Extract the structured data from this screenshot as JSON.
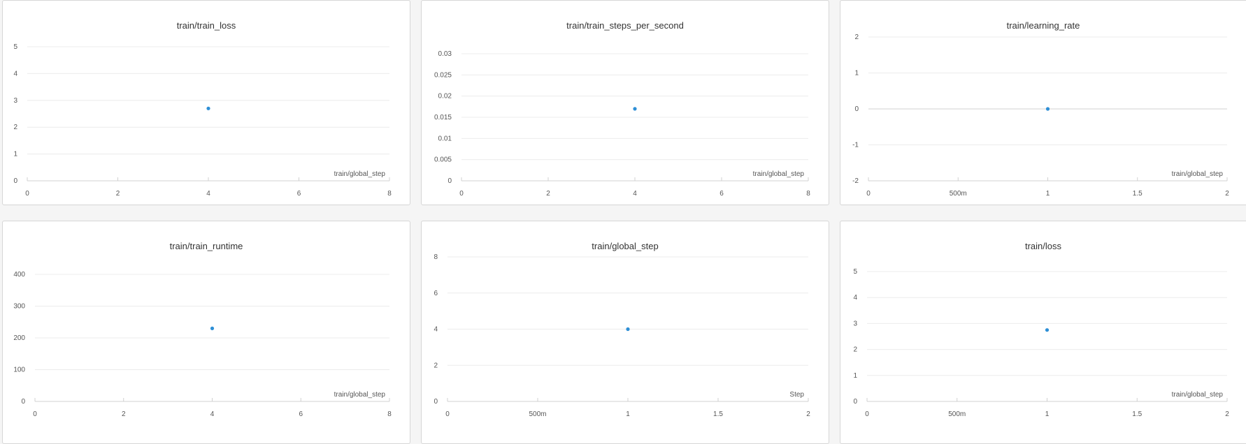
{
  "style": {
    "point_color": "#2e8fd6",
    "grid_color": "#ececec",
    "axis_color": "#d0d0d0",
    "tick_text_color": "#555555"
  },
  "chart_data": [
    {
      "type": "scatter",
      "title": "train/train_loss",
      "xlabel": "train/global_step",
      "ylabel": "",
      "xlim": [
        0,
        8
      ],
      "ylim": [
        0,
        5
      ],
      "x_ticks": [
        "0",
        "2",
        "4",
        "6",
        "8"
      ],
      "y_ticks": [
        "0",
        "1",
        "2",
        "3",
        "4",
        "5"
      ],
      "grid": true,
      "series": [
        {
          "x": [
            4
          ],
          "y": [
            2.7
          ]
        }
      ]
    },
    {
      "type": "scatter",
      "title": "train/train_steps_per_second",
      "xlabel": "train/global_step",
      "ylabel": "",
      "xlim": [
        0,
        8
      ],
      "ylim": [
        0,
        0.03
      ],
      "x_ticks": [
        "0",
        "2",
        "4",
        "6",
        "8"
      ],
      "y_ticks": [
        "0",
        "0.005",
        "0.01",
        "0.015",
        "0.02",
        "0.025",
        "0.03"
      ],
      "grid": true,
      "series": [
        {
          "x": [
            4
          ],
          "y": [
            0.017
          ]
        }
      ]
    },
    {
      "type": "scatter",
      "title": "train/learning_rate",
      "xlabel": "train/global_step",
      "ylabel": "",
      "xlim": [
        0,
        2
      ],
      "ylim": [
        -2,
        2
      ],
      "x_ticks": [
        "0",
        "500m",
        "1",
        "1.5",
        "2"
      ],
      "y_ticks": [
        "-2",
        "-1",
        "0",
        "1",
        "2"
      ],
      "grid": true,
      "series": [
        {
          "x": [
            1
          ],
          "y": [
            0
          ]
        }
      ]
    },
    {
      "type": "scatter",
      "title": "train/train_runtime",
      "xlabel": "train/global_step",
      "ylabel": "",
      "xlim": [
        0,
        8
      ],
      "ylim": [
        0,
        400
      ],
      "x_ticks": [
        "0",
        "2",
        "4",
        "6",
        "8"
      ],
      "y_ticks": [
        "0",
        "100",
        "200",
        "300",
        "400"
      ],
      "grid": true,
      "series": [
        {
          "x": [
            4
          ],
          "y": [
            230
          ]
        }
      ]
    },
    {
      "type": "scatter",
      "title": "train/global_step",
      "xlabel": "Step",
      "ylabel": "",
      "xlim": [
        0,
        2
      ],
      "ylim": [
        0,
        8
      ],
      "x_ticks": [
        "0",
        "500m",
        "1",
        "1.5",
        "2"
      ],
      "y_ticks": [
        "0",
        "2",
        "4",
        "6",
        "8"
      ],
      "grid": true,
      "series": [
        {
          "x": [
            1
          ],
          "y": [
            4
          ]
        }
      ]
    },
    {
      "type": "scatter",
      "title": "train/loss",
      "xlabel": "train/global_step",
      "ylabel": "",
      "xlim": [
        0,
        2
      ],
      "ylim": [
        0,
        5
      ],
      "x_ticks": [
        "0",
        "500m",
        "1",
        "1.5",
        "2"
      ],
      "y_ticks": [
        "0",
        "1",
        "2",
        "3",
        "4",
        "5"
      ],
      "grid": true,
      "series": [
        {
          "x": [
            1
          ],
          "y": [
            2.75
          ]
        }
      ]
    }
  ]
}
